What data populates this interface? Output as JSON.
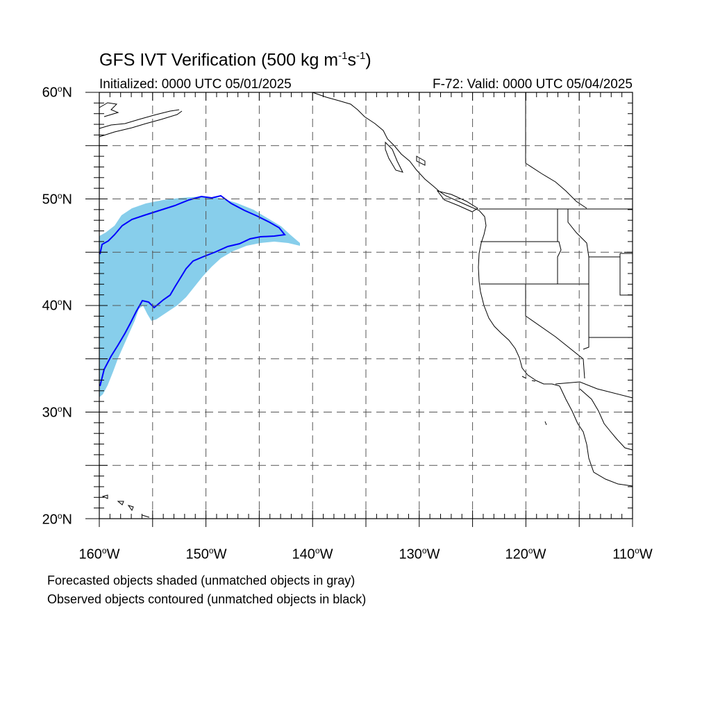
{
  "title": {
    "prefix": "GFS IVT Verification (500 kg m",
    "sup1": "-1",
    "mid": "s",
    "sup2": "-1",
    "suffix": ")"
  },
  "subtitle_left": "Initialized: 0000 UTC 05/01/2025",
  "subtitle_right": "F-72: Valid: 0000 UTC 05/04/2025",
  "lat_labels": [
    {
      "num": "60",
      "deg": "o",
      "hem": "N"
    },
    {
      "num": "50",
      "deg": "o",
      "hem": "N"
    },
    {
      "num": "40",
      "deg": "o",
      "hem": "N"
    },
    {
      "num": "30",
      "deg": "o",
      "hem": "N"
    },
    {
      "num": "20",
      "deg": "o",
      "hem": "N"
    }
  ],
  "lon_labels": [
    {
      "num": "160",
      "deg": "o",
      "hem": "W"
    },
    {
      "num": "150",
      "deg": "o",
      "hem": "W"
    },
    {
      "num": "140",
      "deg": "o",
      "hem": "W"
    },
    {
      "num": "130",
      "deg": "o",
      "hem": "W"
    },
    {
      "num": "120",
      "deg": "o",
      "hem": "W"
    },
    {
      "num": "110",
      "deg": "o",
      "hem": "W"
    }
  ],
  "notes": [
    "Forecasted objects shaded (unmatched objects in gray)",
    "Observed objects contoured (unmatched objects in black)"
  ],
  "map": {
    "lon_range": [
      -160,
      -110
    ],
    "lat_range": [
      20,
      60
    ],
    "gridline_interval_deg": 5,
    "grid_style": "dashed gray",
    "forecast_fill_color": "#87CEEB",
    "observed_contour_color": "#0000FF",
    "coastline_color": "#000000"
  }
}
